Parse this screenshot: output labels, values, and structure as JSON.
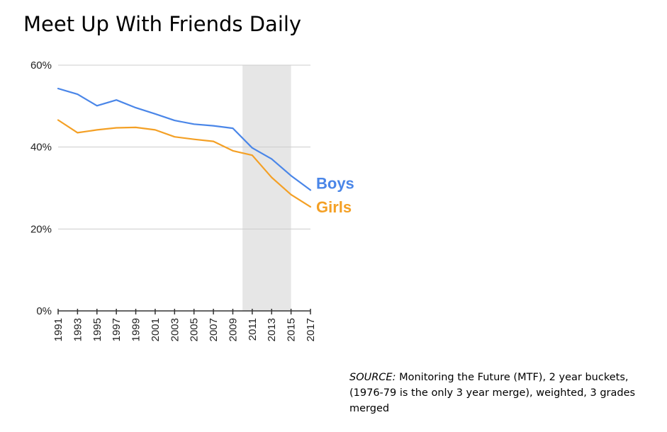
{
  "chart_data": {
    "type": "line",
    "title": "Meet Up With Friends Daily",
    "xlabel": "",
    "ylabel": "",
    "x": [
      1991,
      1993,
      1995,
      1997,
      1999,
      2001,
      2003,
      2005,
      2007,
      2009,
      2011,
      2013,
      2015,
      2017
    ],
    "x_tick_labels": [
      "1991",
      "1993",
      "1995",
      "1997",
      "1999",
      "2001",
      "2003",
      "2005",
      "2007",
      "2009",
      "2011",
      "2013",
      "2015",
      "2017"
    ],
    "y_ticks": [
      0,
      20,
      40,
      60
    ],
    "y_tick_labels": [
      "0%",
      "20%",
      "40%",
      "60%"
    ],
    "ylim": [
      0,
      60
    ],
    "xlim": [
      1991,
      2017
    ],
    "grid": true,
    "shaded_region": {
      "x_start": 2010,
      "x_end": 2015,
      "color": "#e6e6e6"
    },
    "series": [
      {
        "name": "Boys",
        "color": "#4a86e8",
        "values": [
          54.3,
          52.9,
          50.1,
          51.5,
          49.6,
          48.1,
          46.5,
          45.6,
          45.2,
          44.6,
          39.8,
          37.1,
          33.0,
          29.5
        ]
      },
      {
        "name": "Girls",
        "color": "#f4a025",
        "values": [
          46.6,
          43.5,
          44.2,
          44.7,
          44.8,
          44.2,
          42.5,
          41.9,
          41.4,
          39.1,
          38.0,
          32.6,
          28.4,
          25.4
        ]
      }
    ]
  },
  "source": {
    "label": "SOURCE:",
    "text": " Monitoring the Future (MTF), 2 year buckets, (1976-79 is the only 3 year merge), weighted, 3 grades merged"
  }
}
